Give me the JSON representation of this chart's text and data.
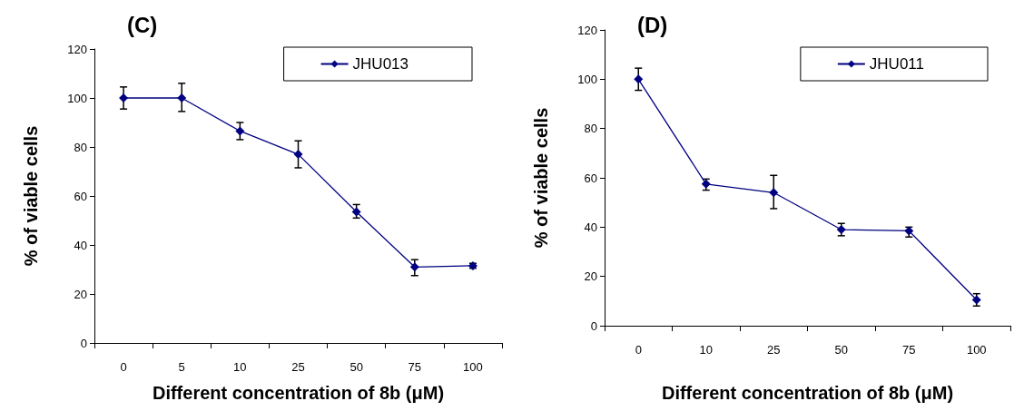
{
  "chart_data": [
    {
      "type": "line",
      "title": "(C)",
      "xlabel": "Different concentration of 8b (μM)",
      "ylabel": "% of viable cells",
      "categories": [
        "0",
        "5",
        "10",
        "25",
        "50",
        "75",
        "100"
      ],
      "series": [
        {
          "name": "JHU013",
          "color": "#000080",
          "values": [
            100,
            100,
            86.5,
            77,
            53.5,
            31,
            31.5
          ],
          "errors": [
            [
              95.5,
              104.5
            ],
            [
              94.5,
              106
            ],
            [
              83,
              90
            ],
            [
              71.5,
              82.5
            ],
            [
              51,
              56.5
            ],
            [
              27.5,
              34
            ],
            [
              30.5,
              32.5
            ]
          ]
        }
      ],
      "ylim": [
        0,
        120
      ],
      "yticks": [
        0,
        20,
        40,
        60,
        80,
        100,
        120
      ],
      "grid": false,
      "legend": "top right",
      "marker": "diamond",
      "line_style": "solid"
    },
    {
      "type": "line",
      "title": "(D)",
      "xlabel": "Different concentration of 8b (μM)",
      "ylabel": "% of viable cells",
      "categories": [
        "0",
        "10",
        "25",
        "50",
        "75",
        "100"
      ],
      "series": [
        {
          "name": "JHU011",
          "color": "#000080",
          "values": [
            100,
            57.5,
            54,
            39,
            38.5,
            10.5
          ],
          "errors": [
            [
              95.5,
              104.5
            ],
            [
              55,
              59.5
            ],
            [
              47.5,
              61
            ],
            [
              36.5,
              41.5
            ],
            [
              36,
              40
            ],
            [
              8,
              13
            ]
          ]
        }
      ],
      "ylim": [
        0,
        120
      ],
      "yticks": [
        0,
        20,
        40,
        60,
        80,
        100,
        120
      ],
      "grid": false,
      "legend": "top right",
      "marker": "diamond",
      "line_style": "solid"
    }
  ]
}
